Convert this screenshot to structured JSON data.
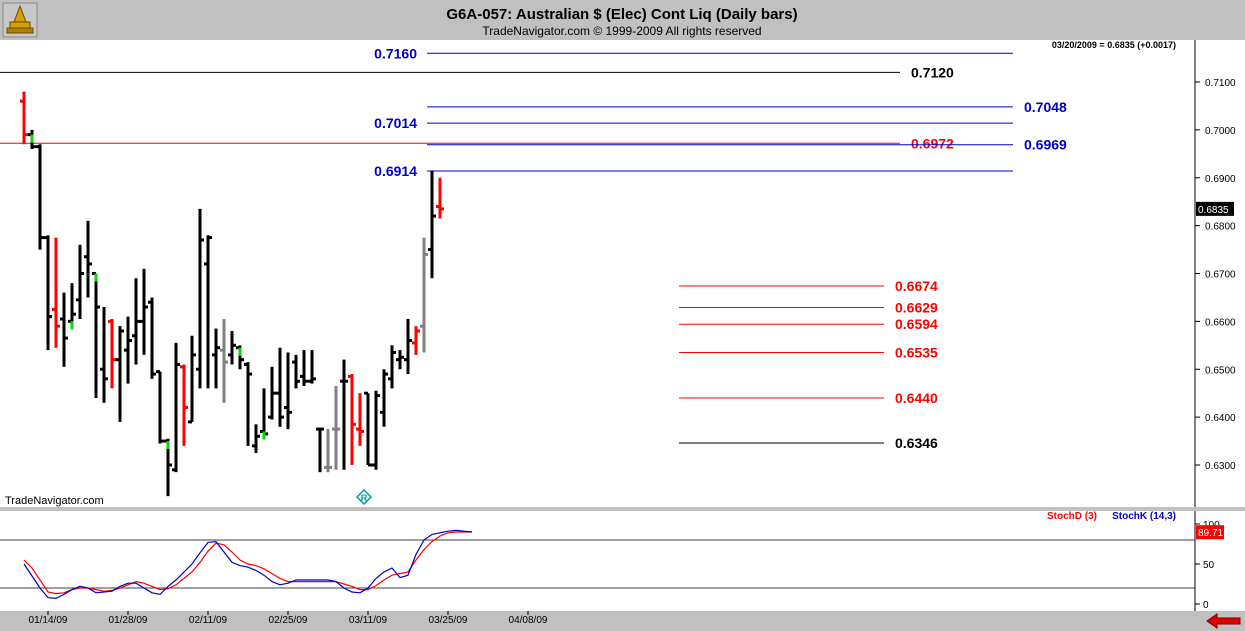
{
  "header": {
    "title": "G6A-057:  Australian $ (Elec) Cont Liq  (Daily bars)",
    "subtitle": "TradeNavigator.com © 1999-2009 All rights reserved",
    "last_quote": "03/20/2009 = 0.6835 (+0.0017)"
  },
  "watermark": "TradeNavigator.com",
  "nav_arrow": "arrow-left-icon",
  "colors": {
    "up_bar": "#000000",
    "down_bar": "#ff0000",
    "neutral_bar": "#808080",
    "mark_bar": "#00dd00",
    "blue_level": "#0000cc",
    "red_level": "#ff0000",
    "black_level": "#000000",
    "stoch_d": "#ff0000",
    "stoch_k": "#0000cc"
  },
  "chart_data": [
    {
      "type": "ohlc",
      "ylim": [
        0.623,
        0.7185
      ],
      "yticks": [
        "0.6300",
        "0.6400",
        "0.6500",
        "0.6600",
        "0.6700",
        "0.6800",
        "0.6900",
        "0.7000",
        "0.7100"
      ],
      "xticks": [
        {
          "label": "01/14/09",
          "bar": 3
        },
        {
          "label": "01/28/09",
          "bar": 13
        },
        {
          "label": "02/11/09",
          "bar": 23
        },
        {
          "label": "02/25/09",
          "bar": 33
        },
        {
          "label": "03/11/09",
          "bar": 43
        },
        {
          "label": "03/25/09",
          "bar": 53
        },
        {
          "label": "04/08/09",
          "bar": 63
        }
      ],
      "last_price": {
        "label": "0.6835",
        "value": 0.6835
      },
      "bars": [
        {
          "o": 0.706,
          "h": 0.708,
          "l": 0.697,
          "c": 0.699,
          "s": "r"
        },
        {
          "o": 0.699,
          "h": 0.7,
          "l": 0.696,
          "c": 0.6965,
          "s": "g"
        },
        {
          "o": 0.6965,
          "h": 0.697,
          "l": 0.675,
          "c": 0.6775,
          "s": "k"
        },
        {
          "o": 0.6775,
          "h": 0.678,
          "l": 0.654,
          "c": 0.661,
          "s": "k"
        },
        {
          "o": 0.6625,
          "h": 0.6775,
          "l": 0.6545,
          "c": 0.659,
          "s": "r"
        },
        {
          "o": 0.6605,
          "h": 0.666,
          "l": 0.6505,
          "c": 0.6565,
          "s": "k"
        },
        {
          "o": 0.66,
          "h": 0.668,
          "l": 0.66,
          "c": 0.6615,
          "s": "g"
        },
        {
          "o": 0.6645,
          "h": 0.676,
          "l": 0.6605,
          "c": 0.67,
          "s": "k"
        },
        {
          "o": 0.6735,
          "h": 0.681,
          "l": 0.665,
          "c": 0.672,
          "s": "k"
        },
        {
          "o": 0.67,
          "h": 0.67,
          "l": 0.644,
          "c": 0.663,
          "s": "g"
        },
        {
          "o": 0.65,
          "h": 0.663,
          "l": 0.643,
          "c": 0.648,
          "s": "k"
        },
        {
          "o": 0.66,
          "h": 0.6605,
          "l": 0.646,
          "c": 0.652,
          "s": "r"
        },
        {
          "o": 0.652,
          "h": 0.659,
          "l": 0.639,
          "c": 0.658,
          "s": "k"
        },
        {
          "o": 0.654,
          "h": 0.661,
          "l": 0.647,
          "c": 0.656,
          "s": "k"
        },
        {
          "o": 0.657,
          "h": 0.669,
          "l": 0.651,
          "c": 0.66,
          "s": "k"
        },
        {
          "o": 0.66,
          "h": 0.671,
          "l": 0.653,
          "c": 0.663,
          "s": "k"
        },
        {
          "o": 0.664,
          "h": 0.665,
          "l": 0.648,
          "c": 0.649,
          "s": "k"
        },
        {
          "o": 0.6495,
          "h": 0.6495,
          "l": 0.6345,
          "c": 0.635,
          "s": "k"
        },
        {
          "o": 0.635,
          "h": 0.6355,
          "l": 0.6235,
          "c": 0.63,
          "s": "g"
        },
        {
          "o": 0.629,
          "h": 0.6555,
          "l": 0.6285,
          "c": 0.651,
          "s": "k"
        },
        {
          "o": 0.6505,
          "h": 0.651,
          "l": 0.634,
          "c": 0.642,
          "s": "r"
        },
        {
          "o": 0.639,
          "h": 0.657,
          "l": 0.639,
          "c": 0.653,
          "s": "k"
        },
        {
          "o": 0.65,
          "h": 0.6835,
          "l": 0.646,
          "c": 0.677,
          "s": "k"
        },
        {
          "o": 0.672,
          "h": 0.678,
          "l": 0.646,
          "c": 0.6775,
          "s": "k"
        },
        {
          "o": 0.653,
          "h": 0.6585,
          "l": 0.646,
          "c": 0.6545,
          "s": "k"
        },
        {
          "o": 0.654,
          "h": 0.6605,
          "l": 0.643,
          "c": 0.6515,
          "s": "n"
        },
        {
          "o": 0.653,
          "h": 0.658,
          "l": 0.651,
          "c": 0.655,
          "s": "k"
        },
        {
          "o": 0.6545,
          "h": 0.655,
          "l": 0.65,
          "c": 0.652,
          "s": "g"
        },
        {
          "o": 0.651,
          "h": 0.6515,
          "l": 0.634,
          "c": 0.649,
          "s": "k"
        },
        {
          "o": 0.634,
          "h": 0.6385,
          "l": 0.6325,
          "c": 0.636,
          "s": "k"
        },
        {
          "o": 0.637,
          "h": 0.646,
          "l": 0.636,
          "c": 0.6365,
          "s": "g"
        },
        {
          "o": 0.64,
          "h": 0.6505,
          "l": 0.6395,
          "c": 0.645,
          "s": "k"
        },
        {
          "o": 0.645,
          "h": 0.6545,
          "l": 0.638,
          "c": 0.64,
          "s": "k"
        },
        {
          "o": 0.642,
          "h": 0.6535,
          "l": 0.6375,
          "c": 0.641,
          "s": "k"
        },
        {
          "o": 0.6515,
          "h": 0.653,
          "l": 0.646,
          "c": 0.6475,
          "s": "k"
        },
        {
          "o": 0.6485,
          "h": 0.654,
          "l": 0.6465,
          "c": 0.6475,
          "s": "k"
        },
        {
          "o": 0.6475,
          "h": 0.654,
          "l": 0.647,
          "c": 0.648,
          "s": "k"
        },
        {
          "o": 0.6375,
          "h": 0.6375,
          "l": 0.6285,
          "c": 0.6375,
          "s": "k"
        },
        {
          "o": 0.6295,
          "h": 0.6375,
          "l": 0.6285,
          "c": 0.6295,
          "s": "n"
        },
        {
          "o": 0.6375,
          "h": 0.6465,
          "l": 0.629,
          "c": 0.6375,
          "s": "n"
        },
        {
          "o": 0.6475,
          "h": 0.652,
          "l": 0.629,
          "c": 0.6475,
          "s": "k"
        },
        {
          "o": 0.6485,
          "h": 0.649,
          "l": 0.63,
          "c": 0.6385,
          "s": "r"
        },
        {
          "o": 0.6375,
          "h": 0.645,
          "l": 0.634,
          "c": 0.637,
          "s": "r"
        },
        {
          "o": 0.645,
          "h": 0.645,
          "l": 0.63,
          "c": 0.63,
          "s": "k"
        },
        {
          "o": 0.63,
          "h": 0.6455,
          "l": 0.629,
          "c": 0.6445,
          "s": "k"
        },
        {
          "o": 0.641,
          "h": 0.65,
          "l": 0.638,
          "c": 0.649,
          "s": "k"
        },
        {
          "o": 0.648,
          "h": 0.655,
          "l": 0.646,
          "c": 0.6535,
          "s": "k"
        },
        {
          "o": 0.652,
          "h": 0.654,
          "l": 0.65,
          "c": 0.6525,
          "s": "k"
        },
        {
          "o": 0.652,
          "h": 0.6605,
          "l": 0.649,
          "c": 0.656,
          "s": "k"
        },
        {
          "o": 0.6555,
          "h": 0.659,
          "l": 0.653,
          "c": 0.658,
          "s": "r"
        },
        {
          "o": 0.659,
          "h": 0.6775,
          "l": 0.6535,
          "c": 0.674,
          "s": "n"
        },
        {
          "o": 0.675,
          "h": 0.6915,
          "l": 0.669,
          "c": 0.682,
          "s": "k"
        },
        {
          "o": 0.684,
          "h": 0.69,
          "l": 0.6815,
          "c": 0.6835,
          "s": "r"
        }
      ],
      "levels": [
        {
          "value": 0.716,
          "label": "0.7160",
          "color": "blue",
          "x1": 427,
          "x2": 1013,
          "label_side": "left"
        },
        {
          "value": 0.712,
          "label": "0.7120",
          "color": "black",
          "x1": 0,
          "x2": 900,
          "label_side": "right"
        },
        {
          "value": 0.7048,
          "label": "0.7048",
          "color": "blue",
          "x1": 427,
          "x2": 1013,
          "label_side": "right"
        },
        {
          "value": 0.7014,
          "label": "0.7014",
          "color": "blue",
          "x1": 427,
          "x2": 1013,
          "label_side": "left"
        },
        {
          "value": 0.6972,
          "label": "0.6972",
          "color": "red",
          "x1": 0,
          "x2": 900,
          "label_side": "right"
        },
        {
          "value": 0.6969,
          "label": "0.6969",
          "color": "blue",
          "x1": 427,
          "x2": 1013,
          "label_side": "right"
        },
        {
          "value": 0.6914,
          "label": "0.6914",
          "color": "blue",
          "x1": 427,
          "x2": 1013,
          "label_side": "left"
        },
        {
          "value": 0.6674,
          "label": "0.6674",
          "color": "red",
          "x1": 679,
          "x2": 884,
          "label_side": "right"
        },
        {
          "value": 0.6629,
          "label": "0.6629",
          "color": "red",
          "x1": 679,
          "x2": 884,
          "label_side": "right"
        },
        {
          "value": 0.6594,
          "label": "0.6594",
          "color": "red",
          "x1": 679,
          "x2": 884,
          "label_side": "right"
        },
        {
          "value": 0.6535,
          "label": "0.6535",
          "color": "red",
          "x1": 679,
          "x2": 884,
          "label_side": "right"
        },
        {
          "value": 0.644,
          "label": "0.6440",
          "color": "red",
          "x1": 679,
          "x2": 884,
          "label_side": "right"
        },
        {
          "value": 0.6346,
          "label": "0.6346",
          "color": "black",
          "x1": 679,
          "x2": 884,
          "label_side": "right"
        }
      ],
      "markers": [
        {
          "bar": 42,
          "label": "R"
        }
      ]
    },
    {
      "type": "line",
      "ylim": [
        0,
        100
      ],
      "yticks": [
        "0",
        "50",
        "100"
      ],
      "legend": [
        "StochD (3)",
        "StochK (14,3)"
      ],
      "last_value": "89.71",
      "series": [
        {
          "name": "StochD (3)",
          "color": "red",
          "values": [
            55,
            45,
            30,
            15,
            13,
            14,
            18,
            20,
            20,
            18,
            16,
            17,
            20,
            24,
            28,
            26,
            22,
            18,
            19,
            24,
            32,
            40,
            52,
            66,
            76,
            74,
            65,
            55,
            50,
            48,
            44,
            38,
            32,
            28,
            28,
            28,
            28,
            28,
            28,
            28,
            25,
            22,
            18,
            18,
            23,
            30,
            36,
            38,
            40,
            55,
            68,
            78,
            85,
            89,
            90,
            90,
            90
          ]
        },
        {
          "name": "StochK (14,3)",
          "color": "blue",
          "values": [
            50,
            35,
            20,
            8,
            7,
            12,
            18,
            22,
            20,
            14,
            15,
            16,
            22,
            26,
            26,
            20,
            14,
            12,
            22,
            30,
            40,
            50,
            64,
            77,
            78,
            65,
            52,
            48,
            46,
            42,
            36,
            28,
            24,
            26,
            30,
            30,
            30,
            30,
            30,
            28,
            20,
            15,
            14,
            20,
            32,
            40,
            45,
            33,
            36,
            62,
            80,
            87,
            89,
            91,
            92,
            91,
            90
          ]
        }
      ]
    }
  ]
}
